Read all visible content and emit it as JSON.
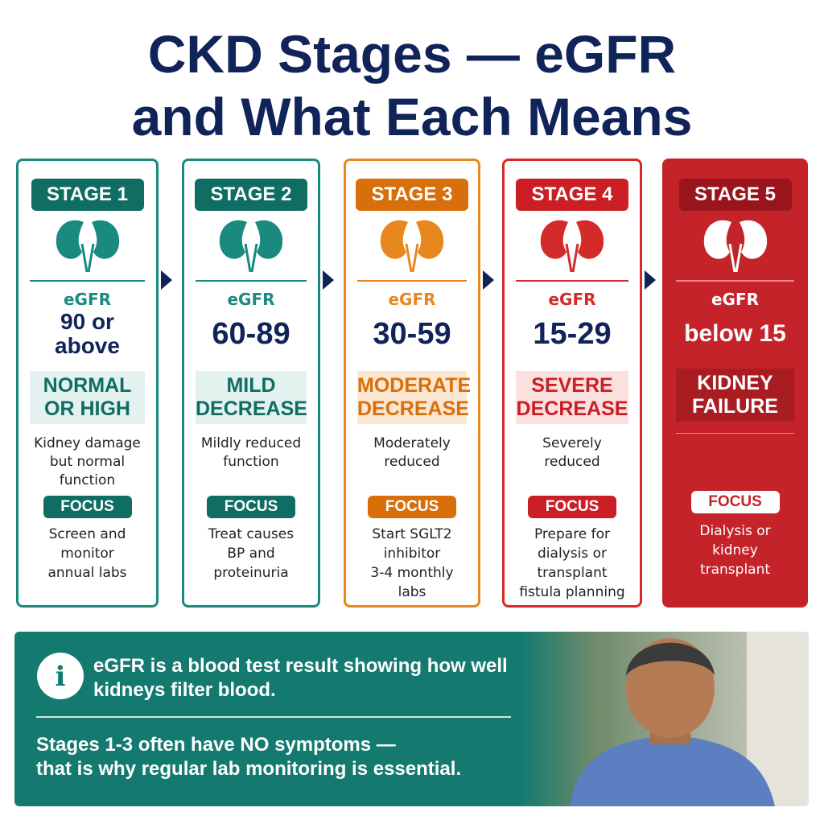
{
  "header": {
    "title_lines": [
      "CKD Stages — eGFR",
      "and What Each Means"
    ]
  },
  "stages": [
    {
      "label": "STAGE 1",
      "egfr_label": "eGFR",
      "range": "90 or\nabove",
      "status": "NORMAL\nOR HIGH",
      "description": "Kidney damage\nbut normal\nfunction",
      "focus_label": "FOCUS",
      "focus_text": "Screen and\nmonitor\nannual labs"
    },
    {
      "label": "STAGE 2",
      "egfr_label": "eGFR",
      "range": "60-89",
      "status": "MILD\nDECREASE",
      "description": "Mildly reduced\nfunction",
      "focus_label": "FOCUS",
      "focus_text": "Treat causes\nBP and\nproteinuria"
    },
    {
      "label": "STAGE 3",
      "egfr_label": "eGFR",
      "range": "30-59",
      "status": "MODERATE\nDECREASE",
      "description": "Moderately\nreduced",
      "focus_label": "FOCUS",
      "focus_text": "Start SGLT2\ninhibitor\n3-4 monthly\nlabs"
    },
    {
      "label": "STAGE 4",
      "egfr_label": "eGFR",
      "range": "15-29",
      "status": "SEVERE\nDECREASE",
      "description": "Severely\nreduced",
      "focus_label": "FOCUS",
      "focus_text": "Prepare for\ndialysis or\ntransplant\nfistula planning"
    },
    {
      "label": "STAGE 5",
      "egfr_label": "eGFR",
      "range": "below 15",
      "status": "KIDNEY\nFAILURE",
      "focus_label": "FOCUS",
      "focus_text": "Dialysis or\nkidney\ntransplant"
    }
  ],
  "info": {
    "definition": "eGFR is a blood test result showing how well\nkidneys filter blood.",
    "note": "Stages 1-3 often have NO symptoms —\nthat is why regular lab monitoring is essential."
  }
}
